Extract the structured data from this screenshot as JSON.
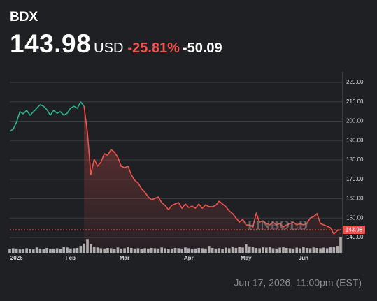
{
  "chart_data": {
    "type": "line",
    "symbol": "BDX",
    "price": 143.98,
    "currency": "USD",
    "change_percent": "-25.81%",
    "change": -50.09,
    "timestamp": "Jun 17, 2026, 11:00pm (EST)",
    "watermark": "FINBOLD",
    "up_color": "#2bb58d",
    "down_color": "#f0524d",
    "volume_color": "#c8c8c8",
    "categories": [
      null,
      null,
      "2026",
      null,
      null,
      null,
      null,
      null,
      null,
      null,
      null,
      null,
      null,
      null,
      null,
      null,
      null,
      null,
      "Feb",
      null,
      null,
      null,
      null,
      null,
      null,
      null,
      null,
      null,
      null,
      null,
      null,
      null,
      null,
      null,
      "Mar",
      null,
      null,
      null,
      null,
      null,
      null,
      null,
      null,
      null,
      null,
      null,
      null,
      null,
      null,
      null,
      null,
      null,
      null,
      "Apr",
      null,
      null,
      null,
      null,
      null,
      null,
      null,
      null,
      null,
      null,
      null,
      null,
      null,
      null,
      null,
      null,
      "May",
      null,
      null,
      null,
      null,
      null,
      null,
      null,
      null,
      null,
      null,
      null,
      null,
      null,
      null,
      null,
      null,
      "Jun",
      null,
      null,
      null,
      null,
      null,
      null,
      null,
      null,
      null,
      null,
      null
    ],
    "values": [
      194.8,
      195.9,
      199.5,
      204.9,
      203.8,
      205.6,
      203.1,
      204.9,
      206.7,
      208.5,
      207.7,
      205.9,
      203.1,
      205.6,
      204.1,
      204.9,
      203.1,
      204.1,
      206.7,
      207.7,
      206.7,
      209.9,
      207.7,
      194.1,
      172.4,
      180.4,
      176.8,
      178.9,
      183.2,
      182.5,
      185.4,
      184.0,
      181.4,
      176.8,
      176.0,
      176.8,
      172.4,
      169.5,
      168.1,
      165.2,
      163.4,
      160.9,
      159.5,
      160.2,
      160.9,
      158.0,
      156.6,
      154.4,
      156.6,
      157.3,
      158.0,
      155.1,
      157.3,
      155.5,
      156.2,
      155.1,
      157.3,
      155.1,
      156.9,
      155.9,
      155.9,
      156.6,
      158.7,
      157.3,
      155.9,
      153.7,
      152.3,
      150.1,
      147.9,
      149.4,
      146.5,
      146.5,
      145.4,
      152.6,
      147.9,
      148.6,
      147.2,
      146.5,
      147.9,
      146.5,
      147.2,
      145.4,
      146.5,
      147.2,
      147.9,
      146.5,
      147.2,
      146.5,
      147.2,
      150.1,
      150.8,
      152.3,
      147.2,
      146.5,
      145.8,
      145.0,
      141.8,
      143.6,
      143.98
    ],
    "volume": [
      25,
      30,
      28,
      22,
      26,
      30,
      24,
      22,
      35,
      28,
      26,
      32,
      24,
      28,
      30,
      25,
      40,
      35,
      28,
      30,
      32,
      45,
      60,
      90,
      55,
      40,
      35,
      30,
      28,
      32,
      30,
      26,
      35,
      28,
      30,
      38,
      32,
      28,
      30,
      26,
      30,
      28,
      32,
      30,
      28,
      35,
      30,
      26,
      28,
      32,
      30,
      28,
      35,
      30,
      26,
      28,
      32,
      30,
      28,
      45,
      32,
      28,
      30,
      26,
      34,
      30,
      36,
      32,
      40,
      35,
      55,
      42,
      38,
      32,
      30,
      36,
      34,
      38,
      30,
      28,
      34,
      36,
      32,
      30,
      28,
      34,
      30,
      38,
      32,
      30,
      35,
      32,
      30,
      34,
      30,
      36,
      40,
      45,
      100
    ],
    "vlim": [
      0,
      100
    ],
    "ylim": [
      132.1,
      225.4
    ],
    "yticks": [
      {
        "value": 140,
        "label": "140.00"
      },
      {
        "value": 150,
        "label": "150.00"
      },
      {
        "value": 160,
        "label": "160.00"
      },
      {
        "value": 170,
        "label": "170.00"
      },
      {
        "value": 180,
        "label": "180.00"
      },
      {
        "value": 190,
        "label": "190.00"
      },
      {
        "value": 200,
        "label": "200.00"
      },
      {
        "value": 210,
        "label": "210.00"
      },
      {
        "value": 220,
        "label": "220.00"
      }
    ],
    "grid": true
  }
}
